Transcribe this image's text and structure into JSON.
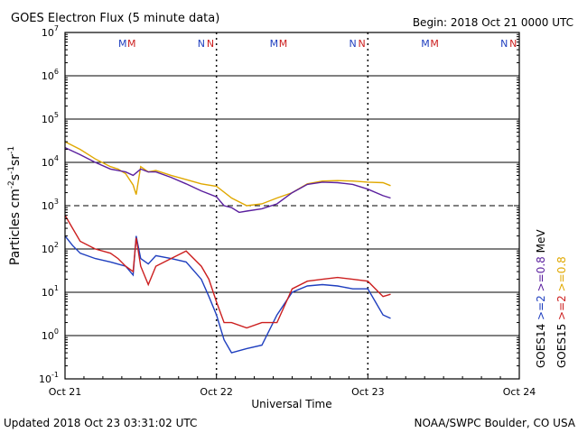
{
  "chart_data": {
    "type": "line",
    "title": "GOES Electron Flux (5 minute data)",
    "begin_label": "Begin: 2018 Oct 21 0000 UTC",
    "xlabel": "Universal Time",
    "ylabel_main": "Particles cm",
    "ylabel_exp1": "-2",
    "ylabel_mid1": "s",
    "ylabel_exp2": "-1",
    "ylabel_mid2": "sr",
    "ylabel_exp3": "-1",
    "x_unit": "days since 2018 Oct 21 0000 UTC",
    "xlim": [
      0,
      3
    ],
    "ylim_log10": [
      -1,
      7
    ],
    "x_ticks": [
      {
        "label": "Oct 21",
        "value": 0
      },
      {
        "label": "Oct 22",
        "value": 1
      },
      {
        "label": "Oct 23",
        "value": 2
      },
      {
        "label": "Oct 24",
        "value": 3
      }
    ],
    "y_ticks": [
      {
        "base": "10",
        "exp": "7",
        "value": 7
      },
      {
        "base": "10",
        "exp": "6",
        "value": 6
      },
      {
        "base": "10",
        "exp": "5",
        "value": 5
      },
      {
        "base": "10",
        "exp": "4",
        "value": 4
      },
      {
        "base": "10",
        "exp": "3",
        "value": 3
      },
      {
        "base": "10",
        "exp": "2",
        "value": 2
      },
      {
        "base": "10",
        "exp": "1",
        "value": 1
      },
      {
        "base": "10",
        "exp": "0",
        "value": 0
      },
      {
        "base": "10",
        "exp": "-1",
        "value": -1
      }
    ],
    "threshold_log10": 3,
    "day_boundaries": [
      1,
      2
    ],
    "orbit_markers": [
      {
        "text": "M",
        "x": 0.38,
        "color": "#1f3fbf"
      },
      {
        "text": "M",
        "x": 0.44,
        "color": "#cc1f1f"
      },
      {
        "text": "N",
        "x": 0.9,
        "color": "#1f3fbf"
      },
      {
        "text": "N",
        "x": 0.96,
        "color": "#cc1f1f"
      },
      {
        "text": "M",
        "x": 1.38,
        "color": "#1f3fbf"
      },
      {
        "text": "M",
        "x": 1.44,
        "color": "#cc1f1f"
      },
      {
        "text": "N",
        "x": 1.9,
        "color": "#1f3fbf"
      },
      {
        "text": "N",
        "x": 1.96,
        "color": "#cc1f1f"
      },
      {
        "text": "M",
        "x": 2.38,
        "color": "#1f3fbf"
      },
      {
        "text": "M",
        "x": 2.44,
        "color": "#cc1f1f"
      },
      {
        "text": "N",
        "x": 2.9,
        "color": "#1f3fbf"
      },
      {
        "text": "N",
        "x": 2.96,
        "color": "#cc1f1f"
      }
    ],
    "legend": [
      {
        "group": "GOES14",
        "items": [
          {
            "text": ">=2",
            "color": "#1f3fbf"
          },
          {
            "text": ">=0.8",
            "color": "#5a1f9e"
          }
        ]
      },
      {
        "group": "GOES15",
        "items": [
          {
            "text": ">=2",
            "color": "#cc1f1f"
          },
          {
            "text": ">=0.8",
            "color": "#e0a800"
          }
        ]
      },
      {
        "unit": "MeV"
      }
    ],
    "series": [
      {
        "name": "GOES15 >=0.8 MeV",
        "color": "#e0a800",
        "x": [
          0,
          0.1,
          0.2,
          0.3,
          0.35,
          0.4,
          0.45,
          0.47,
          0.5,
          0.55,
          0.6,
          0.7,
          0.8,
          0.9,
          1.0,
          1.1,
          1.2,
          1.3,
          1.4,
          1.5,
          1.6,
          1.7,
          1.8,
          1.9,
          2.0,
          2.1,
          2.15
        ],
        "y": [
          30000,
          20000,
          12000,
          8000,
          7000,
          5500,
          3000,
          1800,
          8000,
          6000,
          6500,
          5000,
          4000,
          3200,
          2800,
          1500,
          1000,
          1100,
          1500,
          2000,
          3200,
          3700,
          3800,
          3700,
          3500,
          3400,
          2900
        ]
      },
      {
        "name": "GOES14 >=0.8 MeV",
        "color": "#5a1f9e",
        "x": [
          0,
          0.1,
          0.2,
          0.3,
          0.4,
          0.45,
          0.5,
          0.55,
          0.6,
          0.7,
          0.8,
          0.9,
          1.0,
          1.05,
          1.1,
          1.15,
          1.2,
          1.3,
          1.4,
          1.5,
          1.6,
          1.7,
          1.8,
          1.9,
          2.0,
          2.1,
          2.15
        ],
        "y": [
          22000,
          15000,
          10000,
          7000,
          6000,
          5000,
          7000,
          6000,
          6000,
          4500,
          3200,
          2200,
          1600,
          1000,
          900,
          700,
          750,
          850,
          1100,
          2000,
          3100,
          3500,
          3400,
          3100,
          2400,
          1700,
          1500
        ]
      },
      {
        "name": "GOES14 >=2 MeV",
        "color": "#1f3fbf",
        "x": [
          0,
          0.05,
          0.1,
          0.2,
          0.3,
          0.4,
          0.45,
          0.47,
          0.5,
          0.55,
          0.6,
          0.7,
          0.8,
          0.9,
          0.95,
          1.0,
          1.05,
          1.1,
          1.2,
          1.3,
          1.4,
          1.5,
          1.6,
          1.7,
          1.8,
          1.9,
          2.0,
          2.05,
          2.1,
          2.15
        ],
        "y": [
          200,
          120,
          80,
          60,
          50,
          40,
          25,
          200,
          60,
          45,
          70,
          60,
          50,
          20,
          8,
          3,
          0.8,
          0.4,
          0.5,
          0.6,
          3,
          10,
          14,
          15,
          14,
          12,
          12,
          6,
          3,
          2.5
        ]
      },
      {
        "name": "GOES15 >=2 MeV",
        "color": "#cc1f1f",
        "x": [
          0,
          0.05,
          0.1,
          0.2,
          0.3,
          0.35,
          0.4,
          0.45,
          0.47,
          0.5,
          0.55,
          0.6,
          0.7,
          0.8,
          0.9,
          0.95,
          1.0,
          1.05,
          1.1,
          1.2,
          1.3,
          1.4,
          1.5,
          1.6,
          1.7,
          1.8,
          1.9,
          2.0,
          2.05,
          2.1,
          2.15
        ],
        "y": [
          600,
          300,
          150,
          100,
          80,
          60,
          40,
          30,
          180,
          40,
          15,
          40,
          60,
          90,
          40,
          20,
          6,
          2,
          2,
          1.5,
          2,
          2,
          12,
          18,
          20,
          22,
          20,
          18,
          12,
          8,
          9
        ]
      }
    ]
  },
  "footer": {
    "updated": "Updated 2018 Oct 23 03:31:02 UTC",
    "credit": "NOAA/SWPC Boulder, CO USA"
  }
}
